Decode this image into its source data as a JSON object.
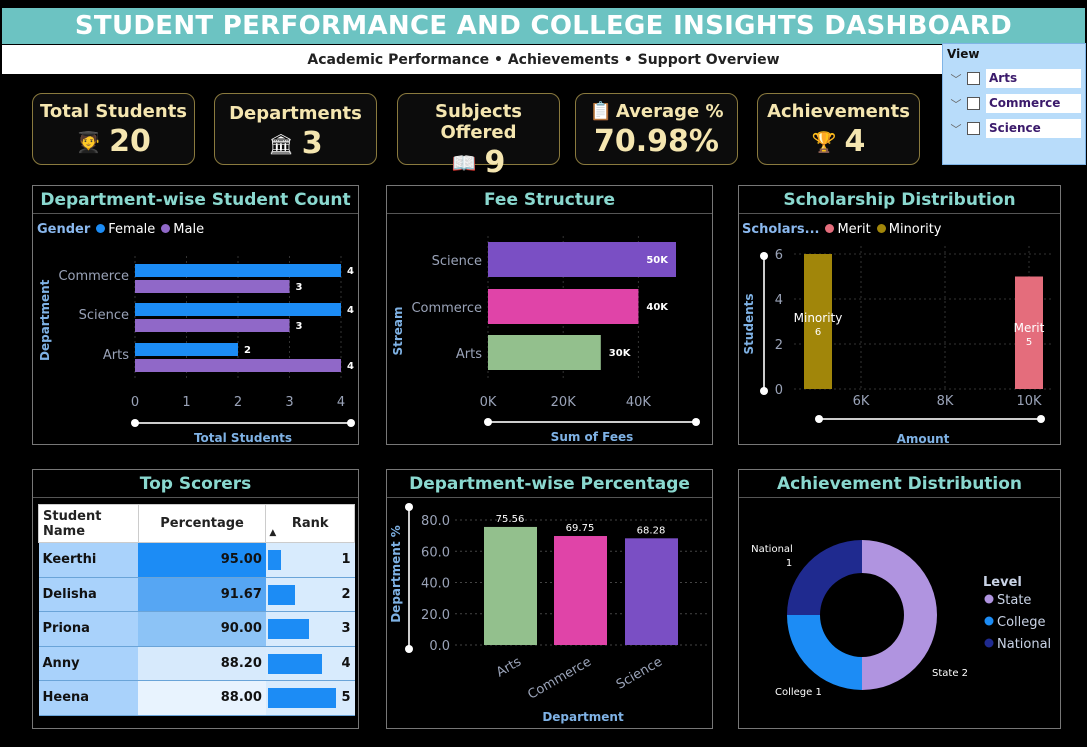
{
  "header": {
    "title": "STUDENT PERFORMANCE AND COLLEGE INSIGHTS DASHBOARD",
    "subtitle": "Academic Performance • Achievements • Support Overview"
  },
  "view": {
    "title": "View",
    "items": [
      {
        "label": "Arts"
      },
      {
        "label": "Commerce"
      },
      {
        "label": "Science"
      }
    ]
  },
  "kpis": [
    {
      "label": "Total Students",
      "value": "20",
      "icon": "student-icon",
      "glyph": "🧑‍🎓"
    },
    {
      "label": "Departments",
      "value": "3",
      "icon": "building-icon",
      "glyph": "🏛"
    },
    {
      "label": "Subjects Offered",
      "value": "9",
      "icon": "book-icon",
      "glyph": "📖"
    },
    {
      "label": "Average %",
      "value": "70.98%",
      "icon": "clipboard-icon",
      "glyph": "📋"
    },
    {
      "label": "Achievements",
      "value": "4",
      "icon": "trophy-icon",
      "glyph": "🏆"
    }
  ],
  "colors": {
    "female": "#1c8cf5",
    "male": "#9068c8",
    "pink": "#e044a8",
    "green": "#93c08d",
    "purple": "#7a4fc4",
    "merit": "#e46d7c",
    "minority": "#a1860a",
    "state": "#b094e0",
    "college": "#1c8cf5",
    "national": "#1f2a8f"
  },
  "dept_count": {
    "title": "Department-wise Student Count",
    "legend_title": "Gender",
    "xlabel": "Total Students",
    "ylabel": "Department",
    "chart_data": {
      "type": "bar",
      "categories": [
        "Commerce",
        "Science",
        "Arts"
      ],
      "series": [
        {
          "name": "Female",
          "values": [
            4,
            4,
            2
          ]
        },
        {
          "name": "Male",
          "values": [
            3,
            3,
            4
          ]
        }
      ],
      "xlim": [
        0,
        4
      ],
      "xticks": [
        "0",
        "1",
        "2",
        "3",
        "4"
      ]
    }
  },
  "fee": {
    "title": "Fee Structure",
    "xlabel": "Sum of Fees",
    "ylabel": "Stream",
    "chart_data": {
      "type": "bar",
      "categories": [
        "Science",
        "Commerce",
        "Arts"
      ],
      "values": [
        50000,
        40000,
        30000
      ],
      "labels": [
        "50K",
        "40K",
        "30K"
      ],
      "xlim": [
        0,
        50000
      ],
      "xticks": [
        "0K",
        "20K",
        "40K"
      ]
    }
  },
  "scholarship": {
    "title": "Scholarship Distribution",
    "legend_title": "Scholars...",
    "xlabel": "Amount",
    "ylabel": "Students",
    "chart_data": {
      "type": "bar",
      "series": [
        {
          "name": "Merit",
          "x": 10000,
          "y": 5
        },
        {
          "name": "Minority",
          "x": 5000,
          "y": 6
        }
      ],
      "xticks": [
        "6K",
        "8K",
        "10K"
      ],
      "ylim": [
        0,
        6
      ],
      "yticks": [
        "0",
        "2",
        "4",
        "6"
      ]
    }
  },
  "top_scorers": {
    "title": "Top Scorers",
    "columns": [
      "Student Name",
      "Percentage",
      "Rank"
    ],
    "rows": [
      {
        "name": "Keerthi",
        "pct": "95.00",
        "rank": "1"
      },
      {
        "name": "Delisha",
        "pct": "91.67",
        "rank": "2"
      },
      {
        "name": "Priona",
        "pct": "90.00",
        "rank": "3"
      },
      {
        "name": "Anny",
        "pct": "88.20",
        "rank": "4"
      },
      {
        "name": "Heena",
        "pct": "88.00",
        "rank": "5"
      }
    ]
  },
  "dept_pct": {
    "title": "Department-wise Percentage",
    "xlabel": "Department",
    "ylabel": "Department %",
    "chart_data": {
      "type": "bar",
      "categories": [
        "Arts",
        "Commerce",
        "Science"
      ],
      "values": [
        75.56,
        69.75,
        68.28
      ],
      "ylim": [
        0,
        80
      ],
      "yticks": [
        "0.0",
        "20.0",
        "40.0",
        "60.0",
        "80.0"
      ]
    }
  },
  "achieve": {
    "title": "Achievement Distribution",
    "legend_title": "Level",
    "chart_data": {
      "type": "pie",
      "slices": [
        {
          "name": "State",
          "value": 2,
          "label": "State 2"
        },
        {
          "name": "College",
          "value": 1,
          "label": "College 1"
        },
        {
          "name": "National",
          "value": 1,
          "label": "National\n1"
        }
      ]
    }
  }
}
